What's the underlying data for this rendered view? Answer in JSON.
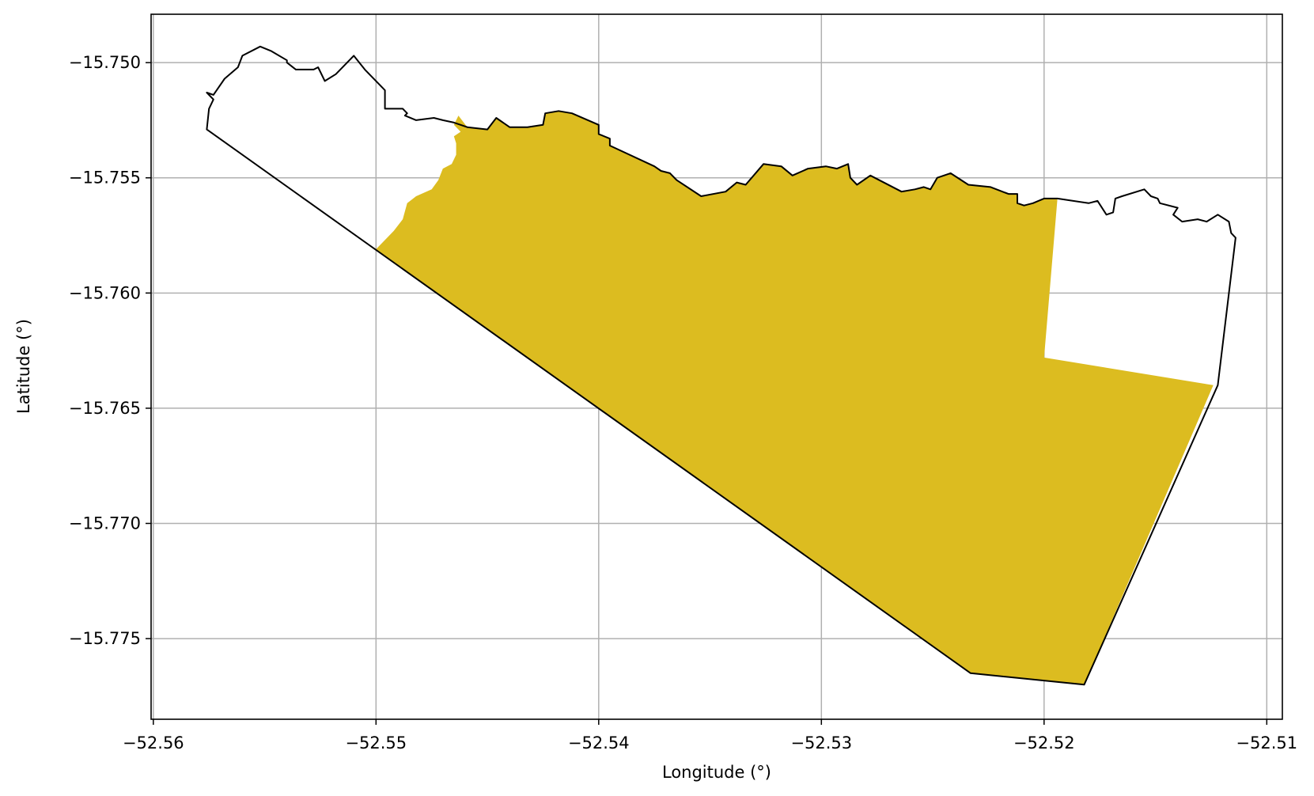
{
  "chart_data": {
    "type": "map",
    "title": "",
    "xlabel": "Longitude (°)",
    "ylabel": "Latitude (°)",
    "xlim": [
      -52.5601,
      -52.5093
    ],
    "ylim": [
      -15.7785,
      -15.7479
    ],
    "grid": true,
    "xticks": [
      -52.56,
      -52.55,
      -52.54,
      -52.53,
      -52.52,
      -52.51
    ],
    "xtick_labels": [
      "−52.56",
      "−52.55",
      "−52.54",
      "−52.53",
      "−52.52",
      "−52.51"
    ],
    "yticks": [
      -15.75,
      -15.755,
      -15.76,
      -15.765,
      -15.77,
      -15.775
    ],
    "ytick_labels": [
      "−15.750",
      "−15.755",
      "−15.760",
      "−15.765",
      "−15.770",
      "−15.775"
    ],
    "colors": {
      "fill": "#dcbc20",
      "outline": "#000000",
      "grid": "#b0b0b0"
    },
    "filled_region": [
      [
        -52.55,
        -15.7581
      ],
      [
        -52.5492,
        -15.7573
      ],
      [
        -52.5488,
        -15.7568
      ],
      [
        -52.5486,
        -15.7561
      ],
      [
        -52.5482,
        -15.7558
      ],
      [
        -52.5475,
        -15.7555
      ],
      [
        -52.5472,
        -15.7551
      ],
      [
        -52.547,
        -15.7546
      ],
      [
        -52.5466,
        -15.7544
      ],
      [
        -52.5464,
        -15.754
      ],
      [
        -52.5464,
        -15.7535
      ],
      [
        -52.5465,
        -15.7532
      ],
      [
        -52.5462,
        -15.753
      ],
      [
        -52.5465,
        -15.7527
      ],
      [
        -52.5463,
        -15.7523
      ],
      [
        -52.5459,
        -15.7528
      ],
      [
        -52.545,
        -15.7529
      ],
      [
        -52.5446,
        -15.7524
      ],
      [
        -52.544,
        -15.7528
      ],
      [
        -52.5432,
        -15.7528
      ],
      [
        -52.5425,
        -15.7527
      ],
      [
        -52.5424,
        -15.7522
      ],
      [
        -52.5418,
        -15.7521
      ],
      [
        -52.5412,
        -15.7522
      ],
      [
        -52.54,
        -15.7527
      ],
      [
        -52.54,
        -15.7531
      ],
      [
        -52.5395,
        -15.7533
      ],
      [
        -52.5395,
        -15.7536
      ],
      [
        -52.5375,
        -15.7545
      ],
      [
        -52.5372,
        -15.7547
      ],
      [
        -52.5368,
        -15.7548
      ],
      [
        -52.5365,
        -15.7551
      ],
      [
        -52.5354,
        -15.7558
      ],
      [
        -52.5343,
        -15.7556
      ],
      [
        -52.5338,
        -15.7552
      ],
      [
        -52.5334,
        -15.7553
      ],
      [
        -52.5326,
        -15.7544
      ],
      [
        -52.5318,
        -15.7545
      ],
      [
        -52.5313,
        -15.7549
      ],
      [
        -52.5306,
        -15.7546
      ],
      [
        -52.5298,
        -15.7545
      ],
      [
        -52.5293,
        -15.7546
      ],
      [
        -52.5288,
        -15.7544
      ],
      [
        -52.5287,
        -15.755
      ],
      [
        -52.5284,
        -15.7553
      ],
      [
        -52.5278,
        -15.7549
      ],
      [
        -52.5264,
        -15.7556
      ],
      [
        -52.5258,
        -15.7555
      ],
      [
        -52.5254,
        -15.7554
      ],
      [
        -52.5251,
        -15.7555
      ],
      [
        -52.5248,
        -15.755
      ],
      [
        -52.5242,
        -15.7548
      ],
      [
        -52.5234,
        -15.7553
      ],
      [
        -52.5224,
        -15.7554
      ],
      [
        -52.5216,
        -15.7557
      ],
      [
        -52.5212,
        -15.7557
      ],
      [
        -52.5212,
        -15.7561
      ],
      [
        -52.5209,
        -15.7562
      ],
      [
        -52.5205,
        -15.7561
      ],
      [
        -52.52,
        -15.7559
      ],
      [
        -52.5194,
        -15.7559
      ],
      [
        -52.52,
        -15.7628
      ],
      [
        -52.5124,
        -15.764
      ],
      [
        -52.5182,
        -15.777
      ],
      [
        -52.5233,
        -15.7765
      ],
      [
        -52.55,
        -15.7581
      ]
    ],
    "outline": [
      [
        -52.5576,
        -15.7529
      ],
      [
        -52.5575,
        -15.752
      ],
      [
        -52.5573,
        -15.7516
      ],
      [
        -52.5576,
        -15.7513
      ],
      [
        -52.5573,
        -15.7514
      ],
      [
        -52.5568,
        -15.7507
      ],
      [
        -52.5562,
        -15.7502
      ],
      [
        -52.556,
        -15.7497
      ],
      [
        -52.5552,
        -15.7493
      ],
      [
        -52.5547,
        -15.7495
      ],
      [
        -52.554,
        -15.7499
      ],
      [
        -52.554,
        -15.75
      ],
      [
        -52.5536,
        -15.7503
      ],
      [
        -52.5528,
        -15.7503
      ],
      [
        -52.5526,
        -15.7502
      ],
      [
        -52.5523,
        -15.7508
      ],
      [
        -52.5518,
        -15.7505
      ],
      [
        -52.551,
        -15.7497
      ],
      [
        -52.5505,
        -15.7503
      ],
      [
        -52.55,
        -15.7508
      ],
      [
        -52.5496,
        -15.7512
      ],
      [
        -52.5496,
        -15.752
      ],
      [
        -52.5488,
        -15.752
      ],
      [
        -52.5486,
        -15.7522
      ],
      [
        -52.5487,
        -15.7523
      ],
      [
        -52.5482,
        -15.7525
      ],
      [
        -52.5474,
        -15.7524
      ],
      [
        -52.547,
        -15.7525
      ],
      [
        -52.5465,
        -15.7526
      ],
      [
        -52.5459,
        -15.7528
      ],
      [
        -52.545,
        -15.7529
      ],
      [
        -52.5446,
        -15.7524
      ],
      [
        -52.544,
        -15.7528
      ],
      [
        -52.5432,
        -15.7528
      ],
      [
        -52.5425,
        -15.7527
      ],
      [
        -52.5424,
        -15.7522
      ],
      [
        -52.5418,
        -15.7521
      ],
      [
        -52.5412,
        -15.7522
      ],
      [
        -52.54,
        -15.7527
      ],
      [
        -52.54,
        -15.7531
      ],
      [
        -52.5395,
        -15.7533
      ],
      [
        -52.5395,
        -15.7536
      ],
      [
        -52.5375,
        -15.7545
      ],
      [
        -52.5372,
        -15.7547
      ],
      [
        -52.5368,
        -15.7548
      ],
      [
        -52.5365,
        -15.7551
      ],
      [
        -52.5354,
        -15.7558
      ],
      [
        -52.5343,
        -15.7556
      ],
      [
        -52.5338,
        -15.7552
      ],
      [
        -52.5334,
        -15.7553
      ],
      [
        -52.5326,
        -15.7544
      ],
      [
        -52.5318,
        -15.7545
      ],
      [
        -52.5313,
        -15.7549
      ],
      [
        -52.5306,
        -15.7546
      ],
      [
        -52.5298,
        -15.7545
      ],
      [
        -52.5293,
        -15.7546
      ],
      [
        -52.5288,
        -15.7544
      ],
      [
        -52.5287,
        -15.755
      ],
      [
        -52.5284,
        -15.7553
      ],
      [
        -52.5278,
        -15.7549
      ],
      [
        -52.5264,
        -15.7556
      ],
      [
        -52.5258,
        -15.7555
      ],
      [
        -52.5254,
        -15.7554
      ],
      [
        -52.5251,
        -15.7555
      ],
      [
        -52.5248,
        -15.755
      ],
      [
        -52.5242,
        -15.7548
      ],
      [
        -52.5234,
        -15.7553
      ],
      [
        -52.5224,
        -15.7554
      ],
      [
        -52.5216,
        -15.7557
      ],
      [
        -52.5212,
        -15.7557
      ],
      [
        -52.5212,
        -15.7561
      ],
      [
        -52.5209,
        -15.7562
      ],
      [
        -52.5205,
        -15.7561
      ],
      [
        -52.52,
        -15.7559
      ],
      [
        -52.5194,
        -15.7559
      ],
      [
        -52.518,
        -15.7561
      ],
      [
        -52.5176,
        -15.756
      ],
      [
        -52.5172,
        -15.7566
      ],
      [
        -52.5169,
        -15.7565
      ],
      [
        -52.5168,
        -15.7559
      ],
      [
        -52.5165,
        -15.7558
      ],
      [
        -52.5155,
        -15.7555
      ],
      [
        -52.5152,
        -15.7558
      ],
      [
        -52.5149,
        -15.7559
      ],
      [
        -52.5148,
        -15.7561
      ],
      [
        -52.514,
        -15.7563
      ],
      [
        -52.5142,
        -15.7566
      ],
      [
        -52.5138,
        -15.7569
      ],
      [
        -52.5131,
        -15.7568
      ],
      [
        -52.5127,
        -15.7569
      ],
      [
        -52.5122,
        -15.7566
      ],
      [
        -52.5117,
        -15.7569
      ],
      [
        -52.5116,
        -15.7574
      ],
      [
        -52.5114,
        -15.7576
      ],
      [
        -52.5122,
        -15.764
      ],
      [
        -52.5182,
        -15.777
      ],
      [
        -52.5233,
        -15.7765
      ],
      [
        -52.5576,
        -15.7529
      ]
    ]
  }
}
